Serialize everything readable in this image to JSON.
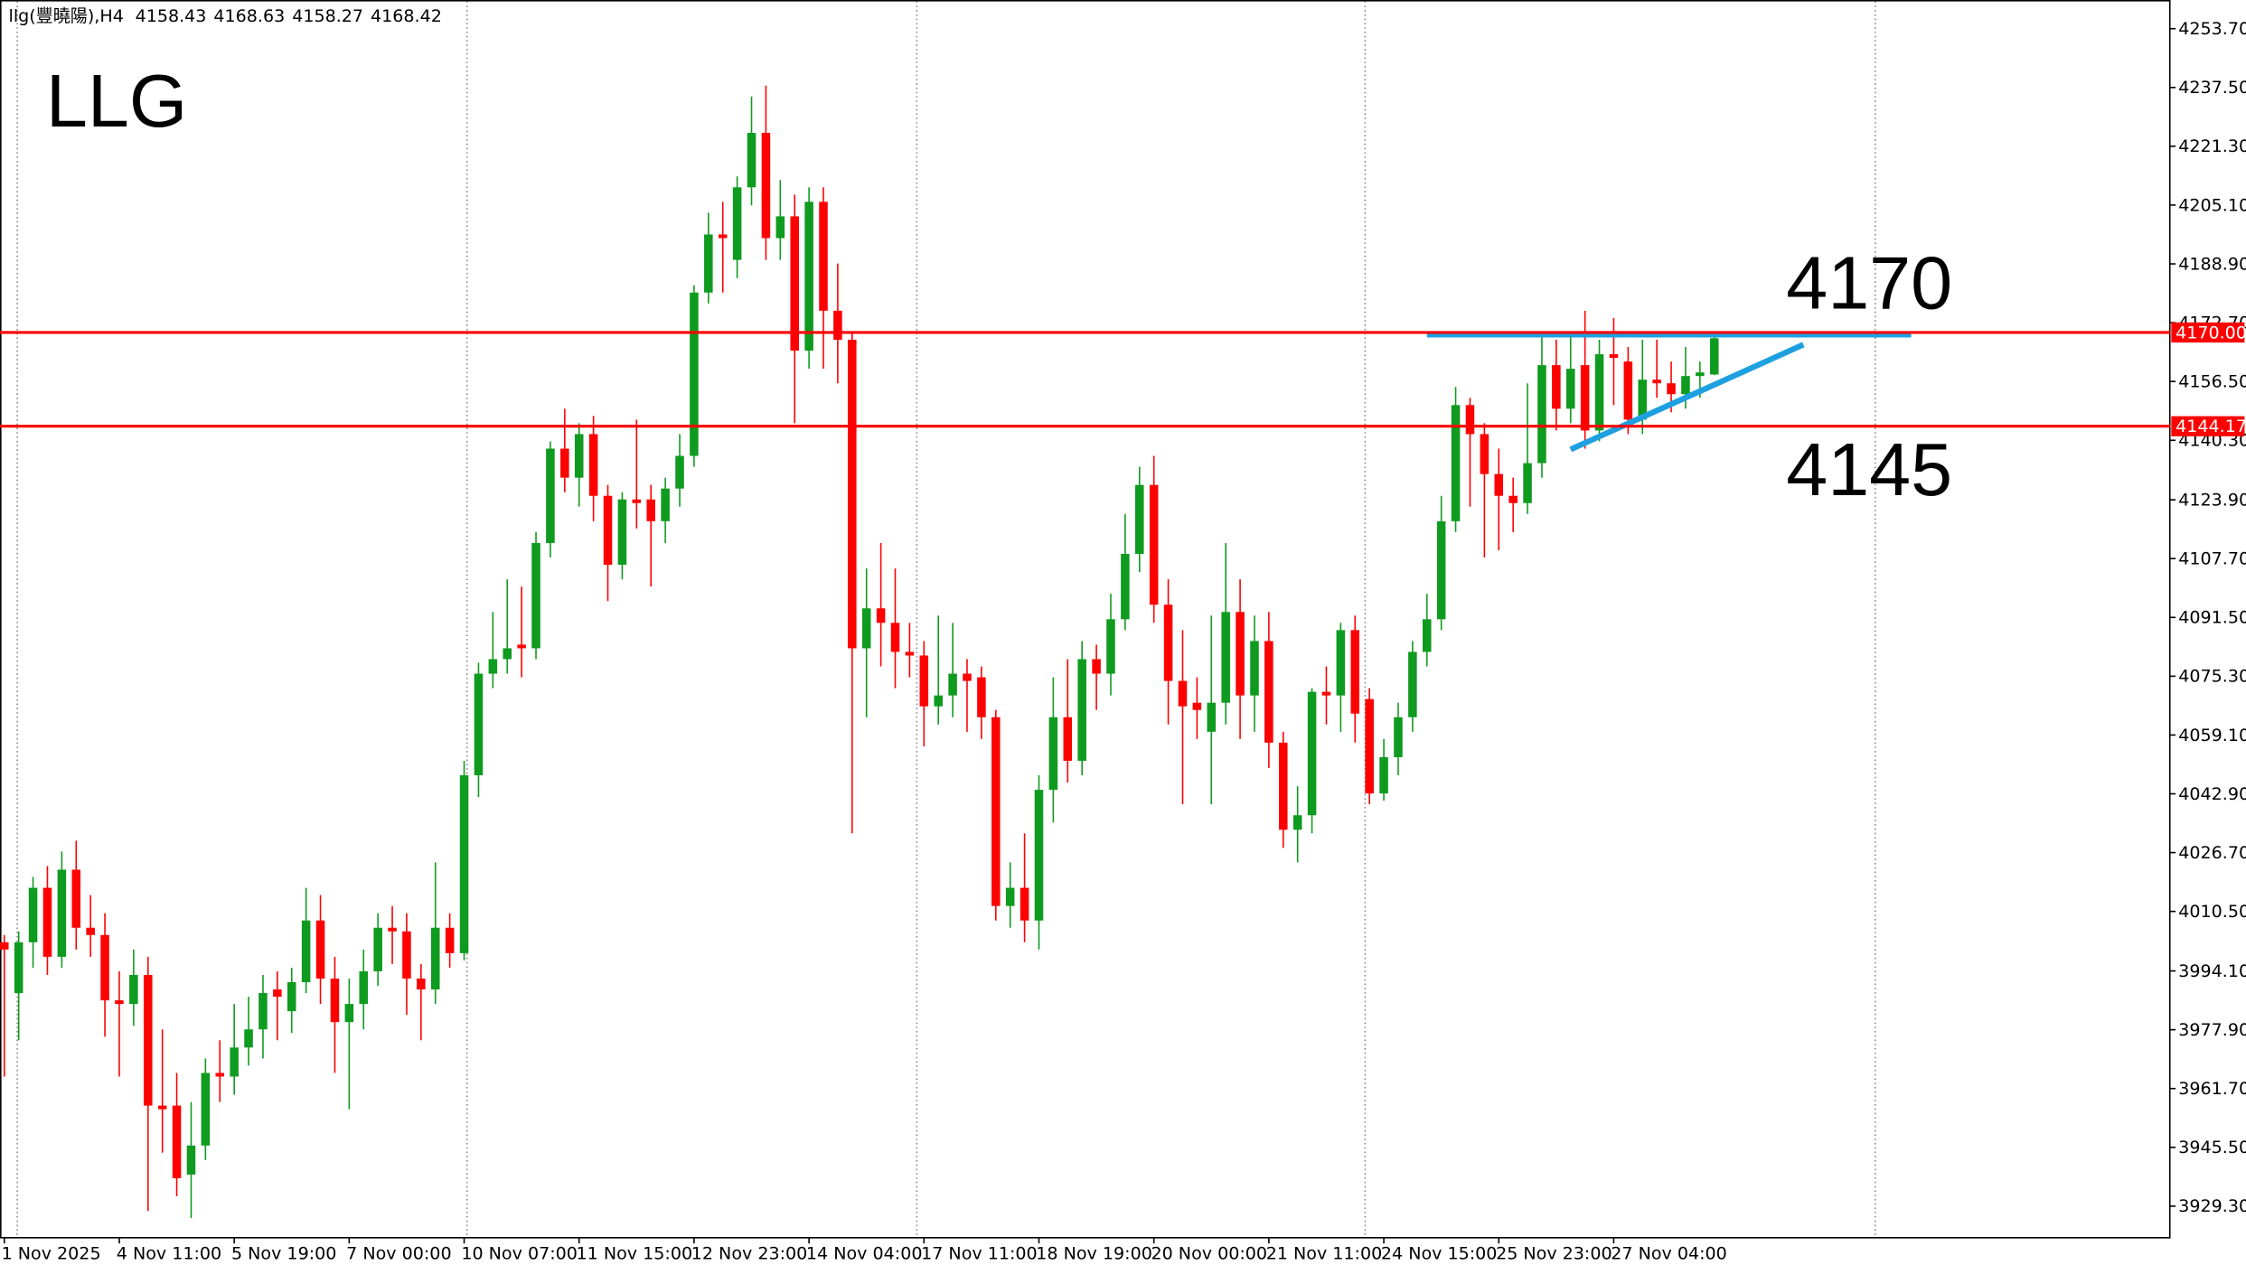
{
  "chart_data": {
    "type": "candlestick",
    "title": "llg(豐曉陽),H4",
    "categories": [
      "1 Nov 2025",
      null,
      null,
      null,
      null,
      null,
      null,
      null,
      "4 Nov 11:00",
      null,
      null,
      null,
      null,
      null,
      null,
      null,
      "5 Nov 19:00",
      null,
      null,
      null,
      null,
      null,
      null,
      null,
      "7 Nov 00:00",
      null,
      null,
      null,
      null,
      null,
      null,
      null,
      "10 Nov 07:00",
      null,
      null,
      null,
      null,
      null,
      null,
      null,
      "11 Nov 15:00",
      null,
      null,
      null,
      null,
      null,
      null,
      null,
      "12 Nov 23:00",
      null,
      null,
      null,
      null,
      null,
      null,
      null,
      "14 Nov 04:00",
      null,
      null,
      null,
      null,
      null,
      null,
      null,
      "17 Nov 11:00",
      null,
      null,
      null,
      null,
      null,
      null,
      null,
      "18 Nov 19:00",
      null,
      null,
      null,
      null,
      null,
      null,
      null,
      "20 Nov 00:00",
      null,
      null,
      null,
      null,
      null,
      null,
      null,
      "21 Nov 11:00",
      null,
      null,
      null,
      null,
      null,
      null,
      null,
      "24 Nov 15:00",
      null,
      null,
      null,
      null,
      null,
      null,
      null,
      "25 Nov 23:00",
      null,
      null,
      null,
      null,
      null,
      null,
      null,
      "27 Nov 04:00",
      null,
      null,
      null,
      null,
      null,
      null,
      null
    ],
    "open": [
      4002,
      3988,
      4002,
      4017,
      3998,
      4022,
      4006,
      4004,
      3986,
      3985,
      3993,
      3957,
      3957,
      3938,
      3946,
      3966,
      3965,
      3973,
      3978,
      3989,
      3983,
      3991,
      4008,
      3992,
      3980,
      3985,
      3994,
      4006,
      4005,
      3992,
      3989,
      4006,
      3999,
      4048,
      4076,
      4080,
      4084,
      4083,
      4112,
      4138,
      4130,
      4142,
      4125,
      4106,
      4124,
      4124,
      4118,
      4127,
      4136,
      4181,
      4197,
      4190,
      4210,
      4225,
      4196,
      4202,
      4165,
      4206,
      4176,
      4168,
      4083,
      4094,
      4090,
      4082,
      4081,
      4067,
      4070,
      4076,
      4075,
      4064,
      4012,
      4017,
      4008,
      4044,
      4064,
      4052,
      4080,
      4076,
      4091,
      4109,
      4128,
      4095,
      4074,
      4068,
      4060,
      4068,
      4093,
      4070,
      4085,
      4057,
      4033,
      4037,
      4071,
      4070,
      4088,
      4069,
      4043,
      4053,
      4064,
      4082,
      4091,
      4118,
      4150,
      4142,
      4131,
      4125,
      4123,
      4134,
      4161,
      4149,
      4161,
      4143,
      4164,
      4162,
      4146,
      4157,
      4156,
      4153,
      4158,
      4158.43
    ],
    "high": [
      4004,
      4005,
      4020,
      4023,
      4027,
      4030,
      4015,
      4010,
      3994,
      4000,
      3998,
      3978,
      3966,
      3958,
      3970,
      3975,
      3985,
      3987,
      3993,
      3994,
      3995,
      4017,
      4015,
      3998,
      3992,
      4000,
      4010,
      4012,
      4010,
      3996,
      4024,
      4010,
      4052,
      4079,
      4093,
      4102,
      4100,
      4115,
      4140,
      4149,
      4145,
      4147,
      4128,
      4126,
      4146,
      4128,
      4130,
      4142,
      4183,
      4203,
      4206,
      4213,
      4235,
      4238,
      4212,
      4208,
      4210,
      4210,
      4189,
      4170,
      4105,
      4112,
      4105,
      4090,
      4085,
      4092,
      4090,
      4080,
      4078,
      4066,
      4024,
      4032,
      4048,
      4075,
      4080,
      4085,
      4084,
      4098,
      4120,
      4133,
      4136,
      4102,
      4088,
      4075,
      4092,
      4112,
      4102,
      4092,
      4093,
      4060,
      4045,
      4072,
      4078,
      4090,
      4092,
      4072,
      4058,
      4068,
      4085,
      4098,
      4125,
      4155,
      4152,
      4145,
      4138,
      4130,
      4156,
      4170,
      4168,
      4170,
      4176,
      4168,
      4174,
      4166,
      4168,
      4168,
      4162,
      4166,
      4162,
      4168.63
    ],
    "low": [
      3965,
      3975,
      3995,
      3993,
      3995,
      4000,
      3998,
      3976,
      3965,
      3979,
      3928,
      3944,
      3932,
      3926,
      3942,
      3958,
      3960,
      3968,
      3970,
      3975,
      3977,
      3988,
      3985,
      3966,
      3956,
      3978,
      3990,
      3996,
      3982,
      3975,
      3985,
      3995,
      3997,
      4042,
      4072,
      4076,
      4075,
      4080,
      4108,
      4126,
      4122,
      4118,
      4096,
      4102,
      4116,
      4100,
      4112,
      4122,
      4133,
      4178,
      4181,
      4185,
      4205,
      4190,
      4190,
      4145,
      4160,
      4160,
      4156,
      4032,
      4064,
      4078,
      4072,
      4075,
      4056,
      4062,
      4064,
      4060,
      4058,
      4008,
      4006,
      4002,
      4000,
      4035,
      4046,
      4048,
      4066,
      4070,
      4088,
      4104,
      4090,
      4062,
      4040,
      4058,
      4040,
      4062,
      4058,
      4060,
      4050,
      4028,
      4024,
      4032,
      4062,
      4060,
      4057,
      4040,
      4041,
      4048,
      4060,
      4078,
      4088,
      4115,
      4122,
      4108,
      4110,
      4115,
      4120,
      4130,
      4143,
      4145,
      4138,
      4140,
      4150,
      4142,
      4142,
      4152,
      4148,
      4149,
      4152,
      4158.27
    ],
    "close": [
      4000,
      4002,
      4017,
      3998,
      4022,
      4006,
      4004,
      3986,
      3985,
      3993,
      3957,
      3956,
      3937,
      3946,
      3966,
      3965,
      3973,
      3978,
      3988,
      3987,
      3991,
      4008,
      3992,
      3980,
      3985,
      3994,
      4006,
      4005,
      3992,
      3989,
      4006,
      3999,
      4048,
      4076,
      4080,
      4083,
      4083,
      4112,
      4138,
      4130,
      4142,
      4125,
      4106,
      4124,
      4123,
      4118,
      4127,
      4136,
      4181,
      4197,
      4196,
      4210,
      4225,
      4196,
      4202,
      4165,
      4206,
      4176,
      4168,
      4083,
      4094,
      4090,
      4082,
      4081,
      4067,
      4070,
      4076,
      4074,
      4064,
      4012,
      4017,
      4008,
      4044,
      4064,
      4052,
      4080,
      4076,
      4091,
      4109,
      4128,
      4095,
      4074,
      4067,
      4066,
      4068,
      4093,
      4070,
      4085,
      4057,
      4033,
      4037,
      4071,
      4070,
      4088,
      4065,
      4043,
      4053,
      4064,
      4082,
      4091,
      4118,
      4150,
      4142,
      4131,
      4125,
      4123,
      4134,
      4161,
      4149,
      4160,
      4143,
      4164,
      4163,
      4146,
      4157,
      4156,
      4153,
      4158,
      4159,
      4168.42
    ],
    "up_color": "#0f9b1f",
    "down_color": "#ff0000",
    "ylim": [
      3920.6,
      4261.6
    ],
    "yticks": [
      {
        "value": 4253.7,
        "label": "4253.70"
      },
      {
        "value": 4237.5,
        "label": "4237.50"
      },
      {
        "value": 4221.3,
        "label": "4221.30"
      },
      {
        "value": 4205.1,
        "label": "4205.10"
      },
      {
        "value": 4188.9,
        "label": "4188.90"
      },
      {
        "value": 4172.7,
        "label": "4172.70"
      },
      {
        "value": 4156.5,
        "label": "4156.50"
      },
      {
        "value": 4140.3,
        "label": "4140.30"
      },
      {
        "value": 4123.9,
        "label": "4123.90"
      },
      {
        "value": 4107.7,
        "label": "4107.70"
      },
      {
        "value": 4091.5,
        "label": "4091.50"
      },
      {
        "value": 4075.3,
        "label": "4075.30"
      },
      {
        "value": 4059.1,
        "label": "4059.10"
      },
      {
        "value": 4042.9,
        "label": "4042.90"
      },
      {
        "value": 4026.7,
        "label": "4026.70"
      },
      {
        "value": 4010.5,
        "label": "4010.50"
      },
      {
        "value": 3994.1,
        "label": "3994.10"
      },
      {
        "value": 3977.9,
        "label": "3977.90"
      },
      {
        "value": 3961.7,
        "label": "3961.70"
      },
      {
        "value": 3945.5,
        "label": "3945.50"
      },
      {
        "value": 3929.3,
        "label": "3929.30"
      }
    ],
    "price_lines": [
      {
        "value": 4170,
        "label": "4170.00"
      },
      {
        "value": 4144.17,
        "label": "4144.17"
      }
    ],
    "price_line_color": "#ff0000",
    "annotations": [
      "LLG",
      "4170",
      "4145"
    ]
  }
}
